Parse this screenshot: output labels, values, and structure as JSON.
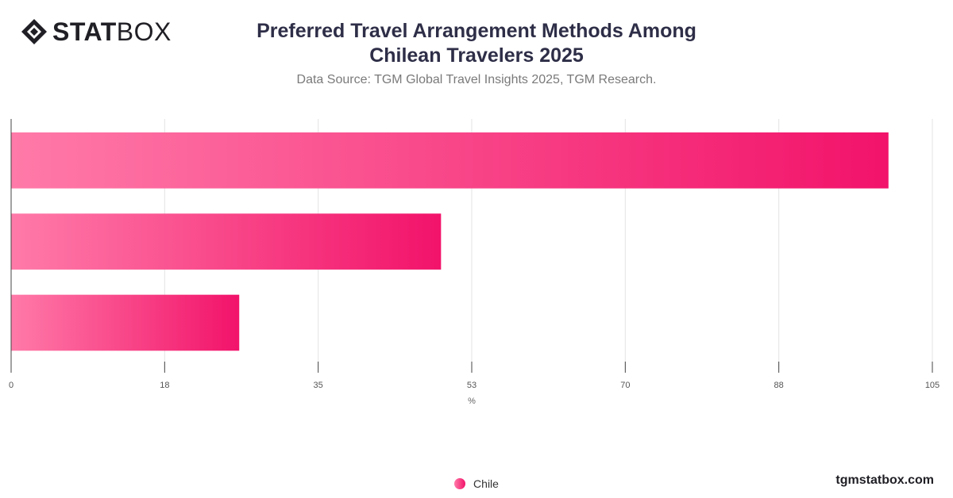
{
  "brand": {
    "logo_strong": "STAT",
    "logo_light": "BOX",
    "footer": "tgmstatbox.com"
  },
  "header": {
    "title_line1": "Preferred Travel Arrangement Methods Among",
    "title_line2": "Chilean Travelers 2025",
    "subtitle": "Data Source: TGM Global Travel Insights 2025, TGM Research."
  },
  "colors": {
    "bar_start": "#ff7aa8",
    "bar_end": "#f2136a",
    "title": "#2e2e48",
    "grid": "#e3e3e3"
  },
  "chart_data": {
    "type": "bar",
    "orientation": "horizontal",
    "title": "Preferred Travel Arrangement Methods Among Chilean Travelers 2025",
    "subtitle": "Data Source: TGM Global Travel Insights 2025, TGM Research.",
    "categories": [
      "",
      "",
      ""
    ],
    "series": [
      {
        "name": "Chile",
        "values": [
          100,
          49,
          26
        ]
      }
    ],
    "xlabel": "%",
    "ylabel": "",
    "xlim": [
      0,
      105
    ],
    "ticks": [
      0,
      17.5,
      35,
      52.5,
      70,
      87.5,
      105
    ],
    "tick_labels": [
      "0",
      "18",
      "35",
      "53",
      "70",
      "88",
      "105"
    ],
    "grid": true,
    "legend": "bottom-center"
  }
}
